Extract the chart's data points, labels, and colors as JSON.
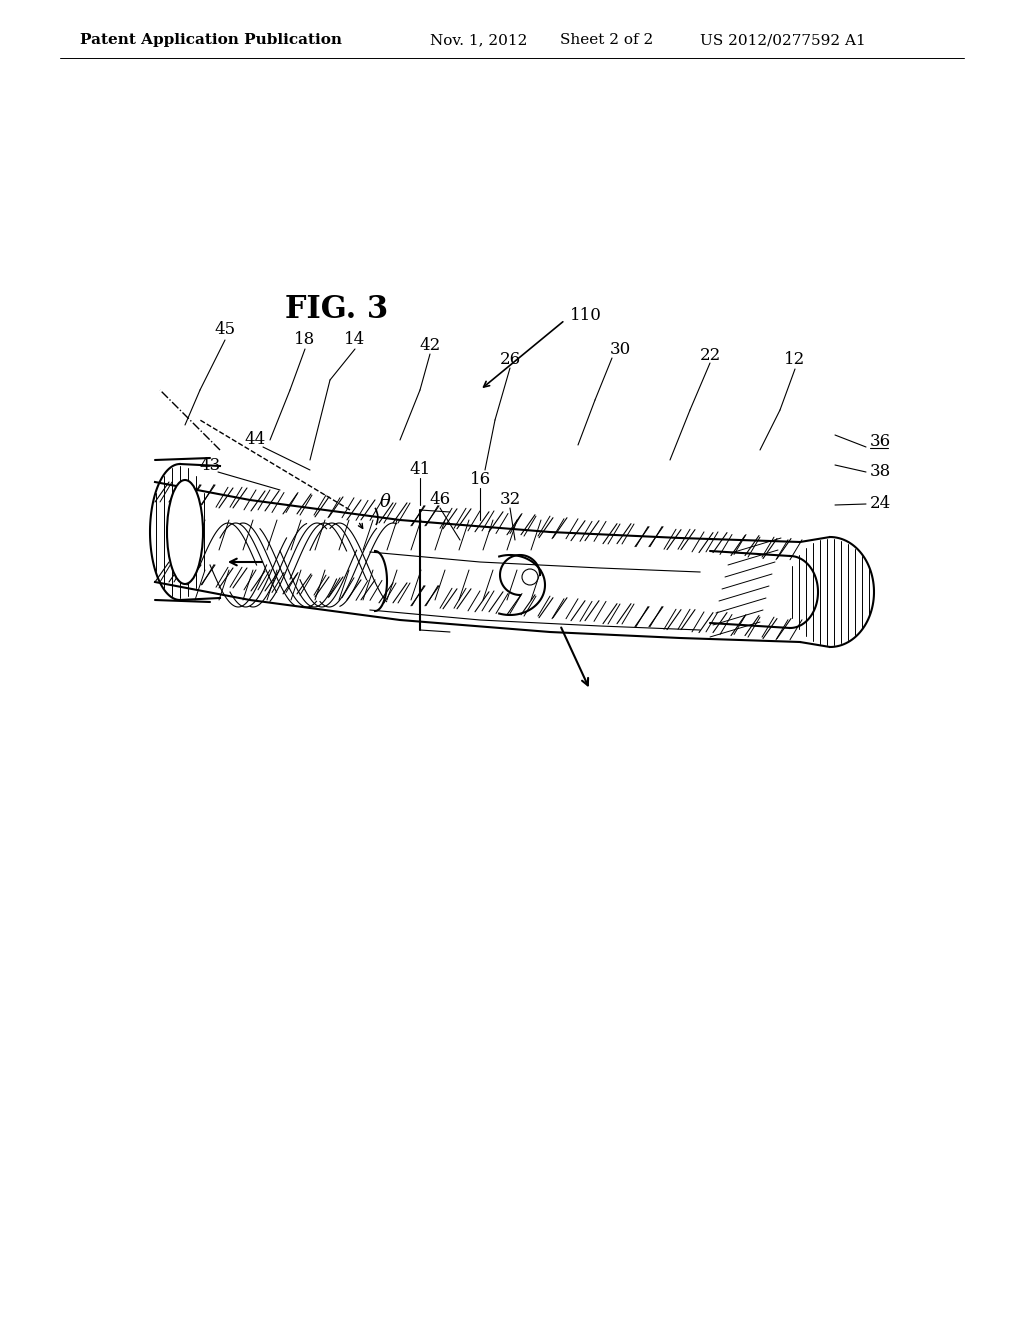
{
  "background_color": "#ffffff",
  "header_text": "Patent Application Publication",
  "header_date": "Nov. 1, 2012",
  "header_sheet": "Sheet 2 of 2",
  "header_patent": "US 2012/0277592 A1",
  "fig_label": "FIG. 3",
  "reference_numbers": [
    "110",
    "45",
    "18",
    "14",
    "42",
    "26",
    "30",
    "22",
    "12",
    "36",
    "38",
    "24",
    "46",
    "32",
    "43",
    "44",
    "41",
    "16",
    "θ"
  ],
  "line_color": "#000000",
  "hatch_color": "#000000",
  "title_fontsize": 18,
  "header_fontsize": 11,
  "label_fontsize": 12
}
